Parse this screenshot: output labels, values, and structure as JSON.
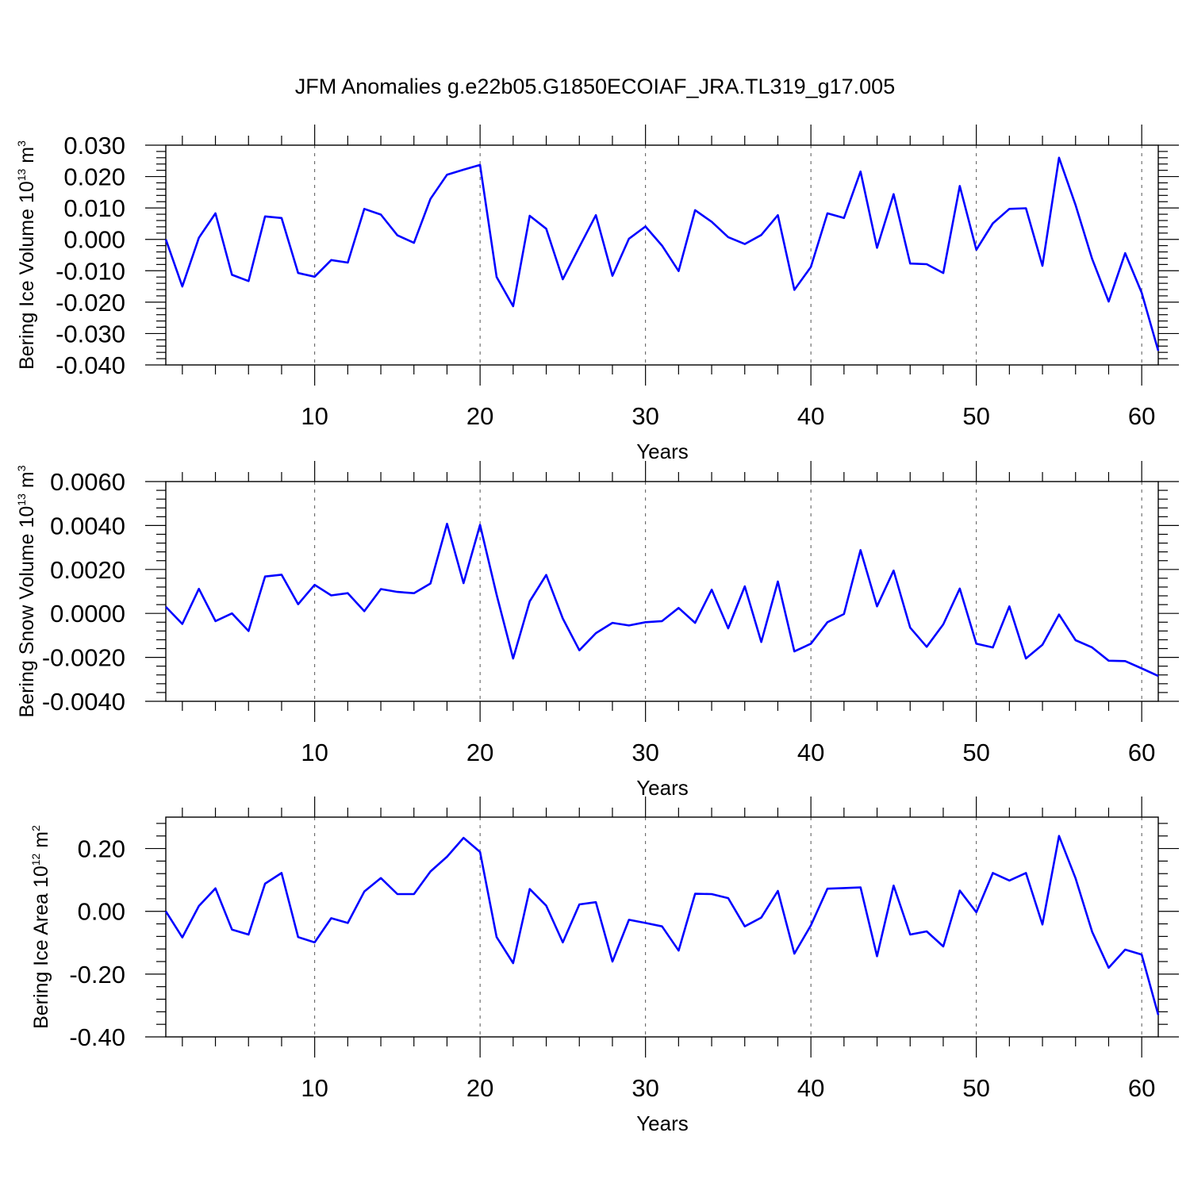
{
  "title": "JFM Anomalies g.e22b05.G1850ECOIAF_JRA.TL319_g17.005",
  "colors": {
    "line": "#0000ff",
    "axis": "#000000",
    "grid": "#555555"
  },
  "chart_data": [
    {
      "type": "line",
      "xlabel": "Years",
      "ylabel": {
        "text": "Bering Ice Volume 10",
        "exponent": "13",
        "unit": "m",
        "unit_exponent": "3"
      },
      "xlim": [
        1,
        61
      ],
      "ylim": [
        -0.04,
        0.03
      ],
      "xticks": [
        10,
        20,
        30,
        40,
        50,
        60
      ],
      "yticks": [
        {
          "value": 0.03,
          "label": "0.030"
        },
        {
          "value": 0.02,
          "label": "0.020"
        },
        {
          "value": 0.01,
          "label": "0.010"
        },
        {
          "value": 0.0,
          "label": "0.000"
        },
        {
          "value": -0.01,
          "label": "-0.010"
        },
        {
          "value": -0.02,
          "label": "-0.020"
        },
        {
          "value": -0.03,
          "label": "-0.030"
        },
        {
          "value": -0.04,
          "label": "-0.040"
        }
      ],
      "grid": "vertical dashed at major x ticks",
      "x_start": 1,
      "values": [
        0.0,
        -0.015,
        0.0005,
        0.0083,
        -0.0113,
        -0.0133,
        0.0073,
        0.0068,
        -0.0107,
        -0.0119,
        -0.0066,
        -0.0074,
        0.0097,
        0.0079,
        0.0013,
        -0.0011,
        0.0129,
        0.0206,
        0.0222,
        0.0237,
        -0.012,
        -0.0213,
        0.0075,
        0.0034,
        -0.0127,
        -0.0024,
        0.0077,
        -0.0116,
        0.0002,
        0.0041,
        -0.002,
        -0.0101,
        0.0093,
        0.0056,
        0.0007,
        -0.0015,
        0.0014,
        0.0077,
        -0.0161,
        -0.0088,
        0.0083,
        0.0068,
        0.0216,
        -0.0027,
        0.0144,
        -0.0077,
        -0.0079,
        -0.0107,
        0.017,
        -0.0033,
        0.0051,
        0.0097,
        0.0099,
        -0.0084,
        0.026,
        0.0109,
        -0.0062,
        -0.0198,
        -0.0044,
        -0.017,
        -0.0355
      ]
    },
    {
      "type": "line",
      "xlabel": "Years",
      "ylabel": {
        "text": "Bering Snow Volume 10",
        "exponent": "13",
        "unit": "m",
        "unit_exponent": "3"
      },
      "xlim": [
        1,
        61
      ],
      "ylim": [
        -0.004,
        0.006
      ],
      "xticks": [
        10,
        20,
        30,
        40,
        50,
        60
      ],
      "yticks": [
        {
          "value": 0.006,
          "label": "0.0060"
        },
        {
          "value": 0.004,
          "label": "0.0040"
        },
        {
          "value": 0.002,
          "label": "0.0020"
        },
        {
          "value": 0.0,
          "label": "0.0000"
        },
        {
          "value": -0.002,
          "label": "-0.0020"
        },
        {
          "value": -0.004,
          "label": "-0.0040"
        }
      ],
      "grid": "vertical dashed at major x ticks",
      "x_start": 1,
      "values": [
        0.0003,
        -0.00048,
        0.00112,
        -0.00035,
        0.0,
        -0.0008,
        0.00168,
        0.00176,
        0.00042,
        0.0013,
        0.00082,
        0.00092,
        0.0001,
        0.00111,
        0.00098,
        0.00092,
        0.00136,
        0.00408,
        0.00138,
        0.00403,
        0.00085,
        -0.00205,
        0.00055,
        0.00175,
        -0.00023,
        -0.00168,
        -0.0009,
        -0.00043,
        -0.00055,
        -0.0004,
        -0.00035,
        0.00025,
        -0.00043,
        0.00108,
        -0.00068,
        0.00123,
        -0.0013,
        0.00145,
        -0.00173,
        -0.00138,
        -0.0004,
        -3e-05,
        0.00288,
        0.00032,
        0.00195,
        -0.00065,
        -0.00152,
        -0.0005,
        0.00113,
        -0.00138,
        -0.00155,
        0.00032,
        -0.00205,
        -0.00143,
        -5e-05,
        -0.00122,
        -0.00155,
        -0.00215,
        -0.00217,
        -0.0025,
        -0.00285
      ]
    },
    {
      "type": "line",
      "xlabel": "Years",
      "ylabel": {
        "text": "Bering Ice Area 10",
        "exponent": "12",
        "unit": "m",
        "unit_exponent": "2"
      },
      "xlim": [
        1,
        61
      ],
      "ylim": [
        -0.4,
        0.3
      ],
      "xticks": [
        10,
        20,
        30,
        40,
        50,
        60
      ],
      "yticks": [
        {
          "value": 0.2,
          "label": "0.20"
        },
        {
          "value": 0.0,
          "label": "0.00"
        },
        {
          "value": -0.2,
          "label": "-0.20"
        },
        {
          "value": -0.4,
          "label": "-0.40"
        }
      ],
      "grid": "vertical dashed at major x ticks",
      "x_start": 1,
      "values": [
        0.0,
        -0.083,
        0.017,
        0.073,
        -0.058,
        -0.074,
        0.088,
        0.122,
        -0.082,
        -0.099,
        -0.022,
        -0.037,
        0.063,
        0.106,
        0.055,
        0.055,
        0.127,
        0.174,
        0.234,
        0.189,
        -0.082,
        -0.165,
        0.071,
        0.018,
        -0.099,
        0.022,
        0.029,
        -0.16,
        -0.027,
        -0.037,
        -0.048,
        -0.125,
        0.056,
        0.055,
        0.042,
        -0.048,
        -0.02,
        0.065,
        -0.135,
        -0.045,
        0.072,
        0.074,
        0.076,
        -0.143,
        0.082,
        -0.074,
        -0.064,
        -0.112,
        0.066,
        -0.003,
        0.122,
        0.098,
        0.122,
        -0.042,
        0.24,
        0.105,
        -0.065,
        -0.18,
        -0.122,
        -0.138,
        -0.33
      ]
    }
  ]
}
